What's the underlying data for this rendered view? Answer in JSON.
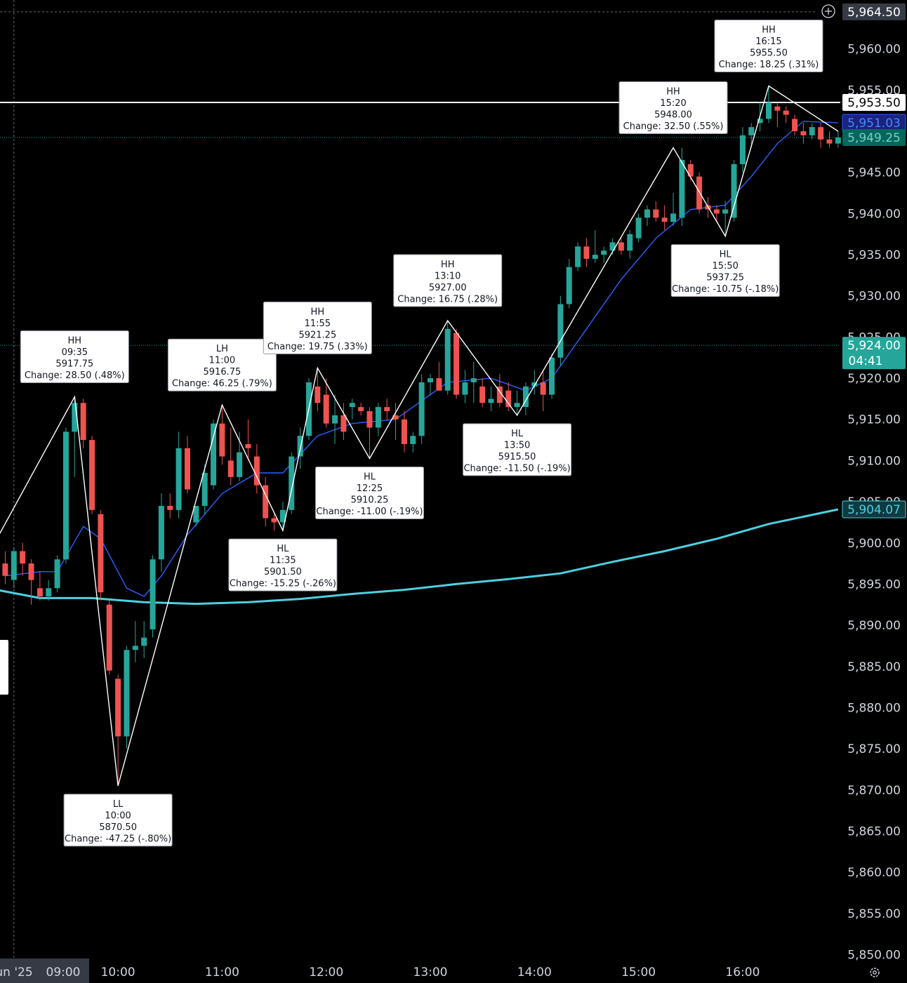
{
  "colors": {
    "background": "#000000",
    "up": "#26a69a",
    "down": "#ef5350",
    "ema_fast": "#2962ff",
    "ema_slow": "#4dd0e1",
    "zigzag": "#ffffff",
    "axis_text": "#d1d4dc"
  },
  "toolbar": {
    "add_icon": "plus-circle-icon",
    "settings_icon": "gear-icon"
  },
  "chart_data": {
    "type": "candlestick",
    "interval_minutes": 5,
    "x_axis": {
      "labels": [
        "un '25",
        "09:00",
        "10:00",
        "11:00",
        "12:00",
        "13:00",
        "14:00",
        "15:00",
        "16:00"
      ],
      "range": [
        "08:45",
        "16:55"
      ]
    },
    "y_axis": {
      "range": [
        5850,
        5965
      ],
      "ticks": [
        "5,850.00",
        "5,855.00",
        "5,860.00",
        "5,865.00",
        "5,870.00",
        "5,875.00",
        "5,880.00",
        "5,885.00",
        "5,890.00",
        "5,895.00",
        "5,900.00",
        "5,905.00",
        "5,910.00",
        "5,915.00",
        "5,920.00",
        "5,925.00",
        "5,930.00",
        "5,935.00",
        "5,940.00",
        "5,945.00",
        "5,950.00",
        "5,955.00",
        "5,960.00"
      ]
    },
    "price_tags": [
      {
        "label": "5,964.50",
        "kind": "crosshair",
        "value": 5964.5
      },
      {
        "label": "5,953.50",
        "kind": "horizontal-line",
        "value": 5953.5
      },
      {
        "label": "5,951.03",
        "kind": "ema-fast",
        "value": 5951.03
      },
      {
        "label": "5,949.25",
        "kind": "last-price",
        "value": 5949.25
      },
      {
        "label": "5,924.00",
        "sublabel": "04:41",
        "kind": "session-level",
        "value": 5924.0
      },
      {
        "label": "5,904.07",
        "kind": "ema-slow",
        "value": 5904.07
      }
    ],
    "horizontal_line": 5953.5,
    "candles": [
      {
        "t": "08:55",
        "o": 5897.5,
        "h": 5899,
        "l": 5895,
        "c": 5896
      },
      {
        "t": "09:00",
        "o": 5895.5,
        "h": 5899.5,
        "l": 5894.5,
        "c": 5899
      },
      {
        "t": "09:05",
        "o": 5899,
        "h": 5900,
        "l": 5896,
        "c": 5897.5
      },
      {
        "t": "09:10",
        "o": 5897.5,
        "h": 5898,
        "l": 5892.5,
        "c": 5895.5
      },
      {
        "t": "09:15",
        "o": 5894.5,
        "h": 5896.5,
        "l": 5893,
        "c": 5893.5
      },
      {
        "t": "09:20",
        "o": 5893.5,
        "h": 5895.5,
        "l": 5893,
        "c": 5894.5
      },
      {
        "t": "09:25",
        "o": 5894.5,
        "h": 5898.5,
        "l": 5894,
        "c": 5898
      },
      {
        "t": "09:30",
        "o": 5898,
        "h": 5914,
        "l": 5897.5,
        "c": 5913.5
      },
      {
        "t": "09:35",
        "o": 5913.5,
        "h": 5917.75,
        "l": 5908,
        "c": 5917
      },
      {
        "t": "09:40",
        "o": 5917,
        "h": 5917.5,
        "l": 5911.5,
        "c": 5912.5
      },
      {
        "t": "09:45",
        "o": 5912.5,
        "h": 5913,
        "l": 5903.5,
        "c": 5904
      },
      {
        "t": "09:50",
        "o": 5903.5,
        "h": 5904,
        "l": 5893,
        "c": 5894
      },
      {
        "t": "09:55",
        "o": 5892.5,
        "h": 5893,
        "l": 5884,
        "c": 5884.5
      },
      {
        "t": "10:00",
        "o": 5883.5,
        "h": 5884,
        "l": 5870.5,
        "c": 5876.5
      },
      {
        "t": "10:05",
        "o": 5876.5,
        "h": 5887.5,
        "l": 5875,
        "c": 5887
      },
      {
        "t": "10:10",
        "o": 5887,
        "h": 5890.5,
        "l": 5885.5,
        "c": 5887.5
      },
      {
        "t": "10:15",
        "o": 5887.5,
        "h": 5890.5,
        "l": 5886,
        "c": 5888.5
      },
      {
        "t": "10:20",
        "o": 5889.5,
        "h": 5898.5,
        "l": 5888.5,
        "c": 5898
      },
      {
        "t": "10:25",
        "o": 5898,
        "h": 5906,
        "l": 5896.5,
        "c": 5904.5
      },
      {
        "t": "10:30",
        "o": 5904.5,
        "h": 5906,
        "l": 5903,
        "c": 5904
      },
      {
        "t": "10:35",
        "o": 5904,
        "h": 5913.5,
        "l": 5903,
        "c": 5911.5
      },
      {
        "t": "10:40",
        "o": 5911.5,
        "h": 5913,
        "l": 5906,
        "c": 5906.5
      },
      {
        "t": "10:45",
        "o": 5902.5,
        "h": 5904.5,
        "l": 5902,
        "c": 5904.5
      },
      {
        "t": "10:50",
        "o": 5904.5,
        "h": 5909.5,
        "l": 5903.5,
        "c": 5908.5
      },
      {
        "t": "10:55",
        "o": 5907,
        "h": 5915,
        "l": 5906.5,
        "c": 5914.5
      },
      {
        "t": "11:00",
        "o": 5914.5,
        "h": 5916.75,
        "l": 5909.5,
        "c": 5910.5
      },
      {
        "t": "11:05",
        "o": 5910,
        "h": 5914,
        "l": 5907,
        "c": 5908
      },
      {
        "t": "11:10",
        "o": 5908,
        "h": 5913.5,
        "l": 5907.5,
        "c": 5911
      },
      {
        "t": "11:15",
        "o": 5912,
        "h": 5915,
        "l": 5910,
        "c": 5911.5
      },
      {
        "t": "11:20",
        "o": 5910.5,
        "h": 5912,
        "l": 5906,
        "c": 5907
      },
      {
        "t": "11:25",
        "o": 5907,
        "h": 5908,
        "l": 5902,
        "c": 5903
      },
      {
        "t": "11:30",
        "o": 5903,
        "h": 5903.5,
        "l": 5901.5,
        "c": 5902.5
      },
      {
        "t": "11:35",
        "o": 5902.5,
        "h": 5905,
        "l": 5901.5,
        "c": 5904
      },
      {
        "t": "11:40",
        "o": 5904,
        "h": 5911,
        "l": 5903.5,
        "c": 5910.5
      },
      {
        "t": "11:45",
        "o": 5910.5,
        "h": 5914,
        "l": 5909,
        "c": 5913
      },
      {
        "t": "11:50",
        "o": 5913,
        "h": 5920,
        "l": 5912.5,
        "c": 5919.5
      },
      {
        "t": "11:55",
        "o": 5919,
        "h": 5921.25,
        "l": 5916,
        "c": 5917
      },
      {
        "t": "12:00",
        "o": 5918,
        "h": 5920,
        "l": 5914,
        "c": 5914.5
      },
      {
        "t": "12:05",
        "o": 5914.5,
        "h": 5918,
        "l": 5912,
        "c": 5915.5
      },
      {
        "t": "12:10",
        "o": 5915.5,
        "h": 5917,
        "l": 5912.5,
        "c": 5913.5
      },
      {
        "t": "12:15",
        "o": 5916.5,
        "h": 5917.5,
        "l": 5915,
        "c": 5917
      },
      {
        "t": "12:20",
        "o": 5916.5,
        "h": 5917,
        "l": 5915.5,
        "c": 5916
      },
      {
        "t": "12:25",
        "o": 5916,
        "h": 5916.5,
        "l": 5910.25,
        "c": 5914
      },
      {
        "t": "12:30",
        "o": 5914,
        "h": 5917,
        "l": 5913,
        "c": 5916.5
      },
      {
        "t": "12:35",
        "o": 5916.5,
        "h": 5917.5,
        "l": 5915,
        "c": 5916
      },
      {
        "t": "12:40",
        "o": 5915.5,
        "h": 5917,
        "l": 5912.5,
        "c": 5915
      },
      {
        "t": "12:45",
        "o": 5915,
        "h": 5916,
        "l": 5911,
        "c": 5912
      },
      {
        "t": "12:50",
        "o": 5912,
        "h": 5913.5,
        "l": 5911,
        "c": 5913
      },
      {
        "t": "12:55",
        "o": 5913,
        "h": 5920.5,
        "l": 5912,
        "c": 5919.5
      },
      {
        "t": "13:00",
        "o": 5919.5,
        "h": 5920.5,
        "l": 5918,
        "c": 5920
      },
      {
        "t": "13:05",
        "o": 5920,
        "h": 5922,
        "l": 5918.5,
        "c": 5918.5
      },
      {
        "t": "13:10",
        "o": 5918.5,
        "h": 5927,
        "l": 5918,
        "c": 5926
      },
      {
        "t": "13:15",
        "o": 5925.5,
        "h": 5926,
        "l": 5917.5,
        "c": 5918
      },
      {
        "t": "13:20",
        "o": 5918,
        "h": 5921,
        "l": 5917,
        "c": 5919.5
      },
      {
        "t": "13:25",
        "o": 5919.5,
        "h": 5922,
        "l": 5917,
        "c": 5920
      },
      {
        "t": "13:30",
        "o": 5919,
        "h": 5920,
        "l": 5916.5,
        "c": 5917
      },
      {
        "t": "13:35",
        "o": 5917,
        "h": 5919,
        "l": 5916,
        "c": 5917.5
      },
      {
        "t": "13:40",
        "o": 5919,
        "h": 5920.5,
        "l": 5916.5,
        "c": 5917
      },
      {
        "t": "13:45",
        "o": 5918.5,
        "h": 5919.5,
        "l": 5916,
        "c": 5916.5
      },
      {
        "t": "13:50",
        "o": 5916.5,
        "h": 5918.5,
        "l": 5915.5,
        "c": 5917
      },
      {
        "t": "13:55",
        "o": 5916.5,
        "h": 5919.5,
        "l": 5915.5,
        "c": 5919
      },
      {
        "t": "14:00",
        "o": 5919,
        "h": 5921,
        "l": 5918,
        "c": 5919.5
      },
      {
        "t": "14:05",
        "o": 5919.5,
        "h": 5921,
        "l": 5916,
        "c": 5918
      },
      {
        "t": "14:10",
        "o": 5918,
        "h": 5923,
        "l": 5917.5,
        "c": 5922.5
      },
      {
        "t": "14:15",
        "o": 5922.5,
        "h": 5930,
        "l": 5921.5,
        "c": 5929
      },
      {
        "t": "14:20",
        "o": 5929,
        "h": 5934.5,
        "l": 5928.5,
        "c": 5933.5
      },
      {
        "t": "14:25",
        "o": 5933.5,
        "h": 5936.5,
        "l": 5933,
        "c": 5936
      },
      {
        "t": "14:30",
        "o": 5936,
        "h": 5937,
        "l": 5933.5,
        "c": 5934.5
      },
      {
        "t": "14:35",
        "o": 5934.5,
        "h": 5938,
        "l": 5934,
        "c": 5935
      },
      {
        "t": "14:40",
        "o": 5935,
        "h": 5936,
        "l": 5934,
        "c": 5935.5
      },
      {
        "t": "14:45",
        "o": 5935.5,
        "h": 5937,
        "l": 5935,
        "c": 5936.5
      },
      {
        "t": "14:50",
        "o": 5936.5,
        "h": 5937,
        "l": 5935,
        "c": 5935.5
      },
      {
        "t": "14:55",
        "o": 5935.5,
        "h": 5938,
        "l": 5934.5,
        "c": 5937.5
      },
      {
        "t": "15:00",
        "o": 5937,
        "h": 5940,
        "l": 5936.5,
        "c": 5939.5
      },
      {
        "t": "15:05",
        "o": 5939.5,
        "h": 5941,
        "l": 5938.5,
        "c": 5940.5
      },
      {
        "t": "15:10",
        "o": 5940.5,
        "h": 5941.5,
        "l": 5939,
        "c": 5939.5
      },
      {
        "t": "15:15",
        "o": 5939.5,
        "h": 5941,
        "l": 5938,
        "c": 5939
      },
      {
        "t": "15:20",
        "o": 5939,
        "h": 5942.5,
        "l": 5938.5,
        "c": 5940
      },
      {
        "t": "15:25",
        "o": 5939.5,
        "h": 5948,
        "l": 5938.5,
        "c": 5946.5
      },
      {
        "t": "15:30",
        "o": 5946,
        "h": 5946.5,
        "l": 5944,
        "c": 5944.5
      },
      {
        "t": "15:35",
        "o": 5944.5,
        "h": 5945,
        "l": 5940,
        "c": 5940.5
      },
      {
        "t": "15:40",
        "o": 5941,
        "h": 5942,
        "l": 5939.5,
        "c": 5940.5
      },
      {
        "t": "15:45",
        "o": 5940.5,
        "h": 5941,
        "l": 5939,
        "c": 5940
      },
      {
        "t": "15:50",
        "o": 5940,
        "h": 5941.5,
        "l": 5937.25,
        "c": 5940.5
      },
      {
        "t": "15:55",
        "o": 5939.5,
        "h": 5946.5,
        "l": 5939,
        "c": 5946
      },
      {
        "t": "16:00",
        "o": 5946,
        "h": 5950.5,
        "l": 5945,
        "c": 5949.5
      },
      {
        "t": "16:05",
        "o": 5949.5,
        "h": 5951,
        "l": 5948,
        "c": 5950.5
      },
      {
        "t": "16:10",
        "o": 5951,
        "h": 5953.5,
        "l": 5950,
        "c": 5951.5
      },
      {
        "t": "16:15",
        "o": 5951.5,
        "h": 5955.5,
        "l": 5951,
        "c": 5953.5
      },
      {
        "t": "16:20",
        "o": 5953,
        "h": 5953.5,
        "l": 5950.5,
        "c": 5952.5
      },
      {
        "t": "16:25",
        "o": 5952.5,
        "h": 5953,
        "l": 5951,
        "c": 5952
      },
      {
        "t": "16:30",
        "o": 5951.5,
        "h": 5952,
        "l": 5949.5,
        "c": 5950
      },
      {
        "t": "16:35",
        "o": 5950,
        "h": 5951,
        "l": 5948.5,
        "c": 5949.5
      },
      {
        "t": "16:40",
        "o": 5949.5,
        "h": 5951,
        "l": 5949,
        "c": 5950.5
      },
      {
        "t": "16:45",
        "o": 5950.5,
        "h": 5951,
        "l": 5948,
        "c": 5949
      },
      {
        "t": "16:50",
        "o": 5949,
        "h": 5950,
        "l": 5948,
        "c": 5948.5
      },
      {
        "t": "16:55",
        "o": 5948.5,
        "h": 5950,
        "l": 5948,
        "c": 5949.25
      }
    ],
    "ema_fast": [
      {
        "t": "08:55",
        "v": 5896
      },
      {
        "t": "09:15",
        "v": 5896.5
      },
      {
        "t": "09:25",
        "v": 5896.5
      },
      {
        "t": "09:40",
        "v": 5902
      },
      {
        "t": "09:50",
        "v": 5900.5
      },
      {
        "t": "10:05",
        "v": 5894.5
      },
      {
        "t": "10:15",
        "v": 5893.5
      },
      {
        "t": "10:25",
        "v": 5896
      },
      {
        "t": "10:40",
        "v": 5901
      },
      {
        "t": "11:00",
        "v": 5906
      },
      {
        "t": "11:20",
        "v": 5908.5
      },
      {
        "t": "11:35",
        "v": 5908.5
      },
      {
        "t": "11:55",
        "v": 5913
      },
      {
        "t": "12:15",
        "v": 5914.5
      },
      {
        "t": "12:40",
        "v": 5915
      },
      {
        "t": "13:10",
        "v": 5919.5
      },
      {
        "t": "13:35",
        "v": 5920
      },
      {
        "t": "13:55",
        "v": 5918.5
      },
      {
        "t": "14:10",
        "v": 5920
      },
      {
        "t": "14:30",
        "v": 5926
      },
      {
        "t": "14:50",
        "v": 5932
      },
      {
        "t": "15:10",
        "v": 5937
      },
      {
        "t": "15:30",
        "v": 5940.5
      },
      {
        "t": "15:50",
        "v": 5941
      },
      {
        "t": "16:05",
        "v": 5944.5
      },
      {
        "t": "16:20",
        "v": 5948.5
      },
      {
        "t": "16:35",
        "v": 5951.2
      },
      {
        "t": "16:55",
        "v": 5951.03
      }
    ],
    "ema_slow": [
      {
        "t": "08:45",
        "v": 5894.5
      },
      {
        "t": "09:15",
        "v": 5893.3
      },
      {
        "t": "09:45",
        "v": 5893.3
      },
      {
        "t": "10:15",
        "v": 5892.8
      },
      {
        "t": "10:45",
        "v": 5892.6
      },
      {
        "t": "11:15",
        "v": 5892.8
      },
      {
        "t": "11:45",
        "v": 5893.2
      },
      {
        "t": "12:15",
        "v": 5893.8
      },
      {
        "t": "12:45",
        "v": 5894.3
      },
      {
        "t": "13:15",
        "v": 5895
      },
      {
        "t": "13:45",
        "v": 5895.6
      },
      {
        "t": "14:15",
        "v": 5896.3
      },
      {
        "t": "14:45",
        "v": 5897.7
      },
      {
        "t": "15:15",
        "v": 5899
      },
      {
        "t": "15:45",
        "v": 5900.5
      },
      {
        "t": "16:15",
        "v": 5902.3
      },
      {
        "t": "16:55",
        "v": 5904.07
      }
    ],
    "zigzag": [
      {
        "t": "08:45",
        "v": 5898.5
      },
      {
        "t": "09:35",
        "v": 5917.75
      },
      {
        "t": "10:00",
        "v": 5870.5
      },
      {
        "t": "11:00",
        "v": 5916.75
      },
      {
        "t": "11:35",
        "v": 5901.5
      },
      {
        "t": "11:55",
        "v": 5921.25
      },
      {
        "t": "12:25",
        "v": 5910.25
      },
      {
        "t": "13:10",
        "v": 5927
      },
      {
        "t": "13:50",
        "v": 5915.5
      },
      {
        "t": "15:20",
        "v": 5948
      },
      {
        "t": "15:50",
        "v": 5937.25
      },
      {
        "t": "16:15",
        "v": 5955.5
      },
      {
        "t": "16:55",
        "v": 5950
      }
    ],
    "swings": [
      {
        "label": "HH",
        "time": "09:35",
        "price": "5917.75",
        "change": "Change: 28.50 (.48%)",
        "t": "09:35",
        "v": 5917.75,
        "side": "above"
      },
      {
        "label": "LL",
        "time": "10:00",
        "price": "5870.50",
        "change": "Change: -47.25 (-.80%)",
        "t": "10:00",
        "v": 5870.5,
        "side": "below"
      },
      {
        "label": "LH",
        "time": "11:00",
        "price": "5916.75",
        "change": "Change: 46.25 (.79%)",
        "t": "11:00",
        "v": 5916.75,
        "side": "above"
      },
      {
        "label": "HL",
        "time": "11:35",
        "price": "5901.50",
        "change": "Change: -15.25 (-.26%)",
        "t": "11:35",
        "v": 5901.5,
        "side": "below"
      },
      {
        "label": "HH",
        "time": "11:55",
        "price": "5921.25",
        "change": "Change: 19.75 (.33%)",
        "t": "11:55",
        "v": 5921.25,
        "side": "above"
      },
      {
        "label": "HL",
        "time": "12:25",
        "price": "5910.25",
        "change": "Change: -11.00 (-.19%)",
        "t": "12:25",
        "v": 5910.25,
        "side": "below"
      },
      {
        "label": "HH",
        "time": "13:10",
        "price": "5927.00",
        "change": "Change: 16.75 (.28%)",
        "t": "13:10",
        "v": 5927,
        "side": "above"
      },
      {
        "label": "HL",
        "time": "13:50",
        "price": "5915.50",
        "change": "Change: -11.50 (-.19%)",
        "t": "13:50",
        "v": 5915.5,
        "side": "below"
      },
      {
        "label": "HH",
        "time": "15:20",
        "price": "5948.00",
        "change": "Change: 32.50 (.55%)",
        "t": "15:20",
        "v": 5948,
        "side": "above"
      },
      {
        "label": "HL",
        "time": "15:50",
        "price": "5937.25",
        "change": "Change: -10.75 (-.18%)",
        "t": "15:50",
        "v": 5937.25,
        "side": "below"
      },
      {
        "label": "HH",
        "time": "16:15",
        "price": "5955.50",
        "change": "Change: 18.25 (.31%)",
        "t": "16:15",
        "v": 5955.5,
        "side": "above"
      }
    ]
  }
}
